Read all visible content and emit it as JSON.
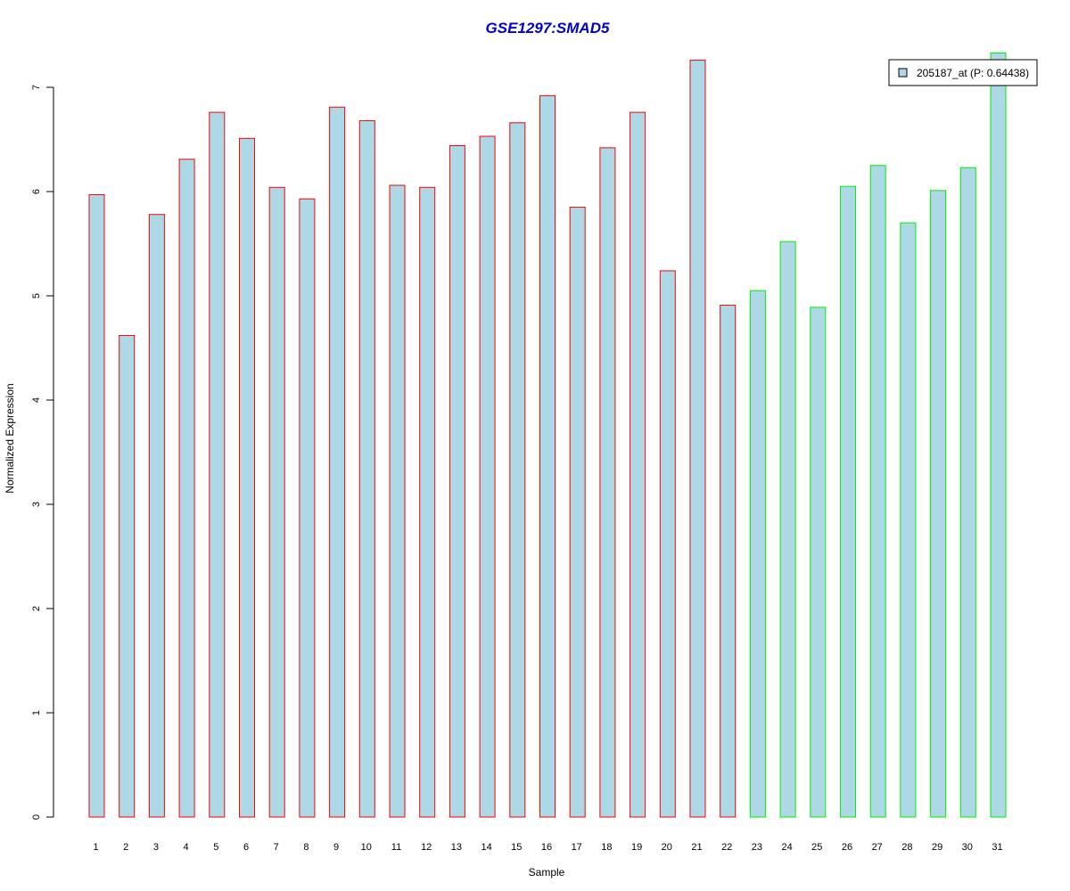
{
  "chart_data": {
    "type": "bar",
    "title": "GSE1297:SMAD5",
    "xlabel": "Sample",
    "ylabel": "Normalized Expression",
    "ylim": [
      0,
      7.35
    ],
    "yticks": [
      0,
      1,
      2,
      3,
      4,
      5,
      6,
      7
    ],
    "grid": false,
    "legend_position": "top-right",
    "categories": [
      "1",
      "2",
      "3",
      "4",
      "5",
      "6",
      "7",
      "8",
      "9",
      "10",
      "11",
      "12",
      "13",
      "14",
      "15",
      "16",
      "17",
      "18",
      "19",
      "20",
      "21",
      "22",
      "23",
      "24",
      "25",
      "26",
      "27",
      "28",
      "29",
      "30",
      "31"
    ],
    "series": [
      {
        "name": "205187_at (P: 0.64438)",
        "values": [
          5.97,
          4.62,
          5.78,
          6.31,
          6.76,
          6.51,
          6.04,
          5.93,
          6.81,
          6.68,
          6.06,
          6.04,
          6.44,
          6.53,
          6.66,
          6.92,
          5.85,
          6.42,
          6.76,
          5.24,
          7.26,
          4.91,
          5.05,
          5.52,
          4.89,
          6.05,
          6.25,
          5.7,
          6.01,
          6.23,
          7.33
        ],
        "group": [
          "a",
          "a",
          "a",
          "a",
          "a",
          "a",
          "a",
          "a",
          "a",
          "a",
          "a",
          "a",
          "a",
          "a",
          "a",
          "a",
          "a",
          "a",
          "a",
          "a",
          "a",
          "a",
          "b",
          "b",
          "b",
          "b",
          "b",
          "b",
          "b",
          "b",
          "b"
        ]
      }
    ],
    "colors": {
      "title": "#0000cc",
      "bar_fill": "#add8e6",
      "group_a_border": "#ff0000",
      "group_b_border": "#00ee00",
      "axis": "#000000"
    }
  }
}
